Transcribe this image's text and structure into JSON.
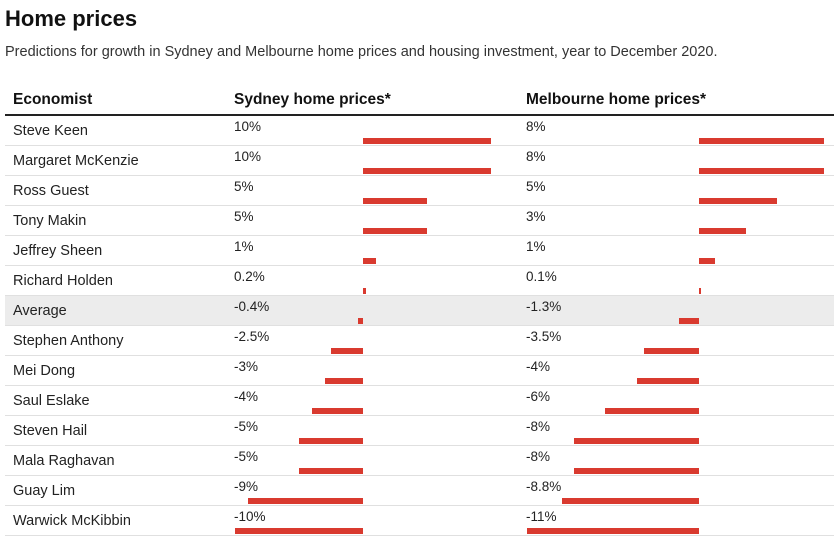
{
  "title": "Home prices",
  "subtitle": "Predictions for growth in Sydney and Melbourne home prices and housing investment, year to December 2020.",
  "bar_color": "#d93a2f",
  "highlight_color": "#ececec",
  "chart_data": {
    "type": "table",
    "columns": [
      "Economist",
      "Sydney home prices*",
      "Melbourne home prices*"
    ],
    "rows": [
      {
        "economist": "Steve Keen",
        "sydney": 10,
        "sydney_label": "10%",
        "melbourne": 8,
        "melbourne_label": "8%"
      },
      {
        "economist": "Margaret McKenzie",
        "sydney": 10,
        "sydney_label": "10%",
        "melbourne": 8,
        "melbourne_label": "8%"
      },
      {
        "economist": "Ross Guest",
        "sydney": 5,
        "sydney_label": "5%",
        "melbourne": 5,
        "melbourne_label": "5%"
      },
      {
        "economist": "Tony Makin",
        "sydney": 5,
        "sydney_label": "5%",
        "melbourne": 3,
        "melbourne_label": "3%"
      },
      {
        "economist": "Jeffrey Sheen",
        "sydney": 1,
        "sydney_label": "1%",
        "melbourne": 1,
        "melbourne_label": "1%"
      },
      {
        "economist": "Richard Holden",
        "sydney": 0.2,
        "sydney_label": "0.2%",
        "melbourne": 0.1,
        "melbourne_label": "0.1%"
      },
      {
        "economist": "Average",
        "sydney": -0.4,
        "sydney_label": "-0.4%",
        "melbourne": -1.3,
        "melbourne_label": "-1.3%",
        "highlight": true
      },
      {
        "economist": "Stephen Anthony",
        "sydney": -2.5,
        "sydney_label": "-2.5%",
        "melbourne": -3.5,
        "melbourne_label": "-3.5%"
      },
      {
        "economist": "Mei Dong",
        "sydney": -3,
        "sydney_label": "-3%",
        "melbourne": -4,
        "melbourne_label": "-4%"
      },
      {
        "economist": "Saul Eslake",
        "sydney": -4,
        "sydney_label": "-4%",
        "melbourne": -6,
        "melbourne_label": "-6%"
      },
      {
        "economist": "Steven Hail",
        "sydney": -5,
        "sydney_label": "-5%",
        "melbourne": -8,
        "melbourne_label": "-8%"
      },
      {
        "economist": "Mala Raghavan",
        "sydney": -5,
        "sydney_label": "-5%",
        "melbourne": -8,
        "melbourne_label": "-8%"
      },
      {
        "economist": "Guay Lim",
        "sydney": -9,
        "sydney_label": "-9%",
        "melbourne": -8.8,
        "melbourne_label": "-8.8%"
      },
      {
        "economist": "Warwick McKibbin",
        "sydney": -10,
        "sydney_label": "-10%",
        "melbourne": -11,
        "melbourne_label": "-11%"
      }
    ]
  }
}
